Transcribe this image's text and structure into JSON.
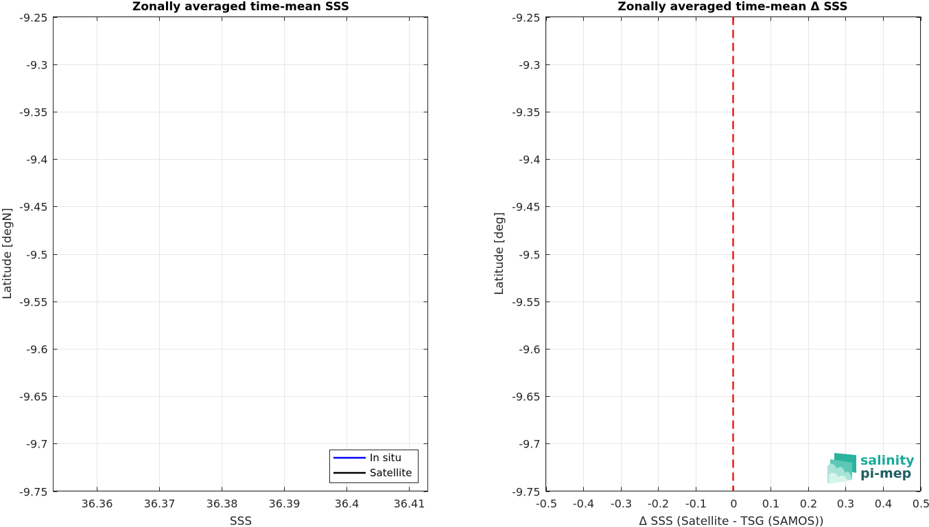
{
  "chart_data": [
    {
      "type": "line",
      "title": "Zonally averaged time-mean SSS",
      "xlabel": "SSS",
      "ylabel": "Latitude [degN]",
      "xlim": [
        36.353,
        36.413
      ],
      "ylim": [
        -9.75,
        -9.25
      ],
      "xticks": [
        36.36,
        36.37,
        36.38,
        36.39,
        36.4,
        36.41
      ],
      "xtick_labels": [
        "36.36",
        "36.37",
        "36.38",
        "36.39",
        "36.4",
        "36.41"
      ],
      "yticks": [
        -9.25,
        -9.3,
        -9.35,
        -9.4,
        -9.45,
        -9.5,
        -9.55,
        -9.6,
        -9.65,
        -9.7,
        -9.75
      ],
      "ytick_labels": [
        "-9.25",
        "-9.3",
        "-9.35",
        "-9.4",
        "-9.45",
        "-9.5",
        "-9.55",
        "-9.6",
        "-9.65",
        "-9.7",
        "-9.75"
      ],
      "grid": true,
      "legend_placement": "bottom-right",
      "series": [
        {
          "name": "In situ",
          "color": "#0000ff",
          "x": [],
          "y": []
        },
        {
          "name": "Satellite",
          "color": "#000000",
          "x": [],
          "y": []
        }
      ]
    },
    {
      "type": "line",
      "title": "Zonally averaged time-mean Δ SSS",
      "xlabel": "Δ SSS (Satellite - TSG (SAMOS))",
      "ylabel": "Latitude [deg]",
      "xlim": [
        -0.5,
        0.5
      ],
      "ylim": [
        -9.75,
        -9.25
      ],
      "xticks": [
        -0.5,
        -0.4,
        -0.3,
        -0.2,
        -0.1,
        0,
        0.1,
        0.2,
        0.3,
        0.4,
        0.5
      ],
      "xtick_labels": [
        "-0.5",
        "-0.4",
        "-0.3",
        "-0.2",
        "-0.1",
        "0",
        "0.1",
        "0.2",
        "0.3",
        "0.4",
        "0.5"
      ],
      "yticks": [
        -9.25,
        -9.3,
        -9.35,
        -9.4,
        -9.45,
        -9.5,
        -9.55,
        -9.6,
        -9.65,
        -9.7,
        -9.75
      ],
      "ytick_labels": [
        "-9.25",
        "-9.3",
        "-9.35",
        "-9.4",
        "-9.45",
        "-9.5",
        "-9.55",
        "-9.6",
        "-9.65",
        "-9.7",
        "-9.75"
      ],
      "grid": true,
      "reference_line": {
        "x": 0,
        "color": "#e8201f",
        "style": "dashed"
      },
      "series": []
    }
  ],
  "logo": {
    "line1": "salinity",
    "line2": "pi-mep",
    "color1": "#1aa89a",
    "color2": "#1f5e63"
  }
}
